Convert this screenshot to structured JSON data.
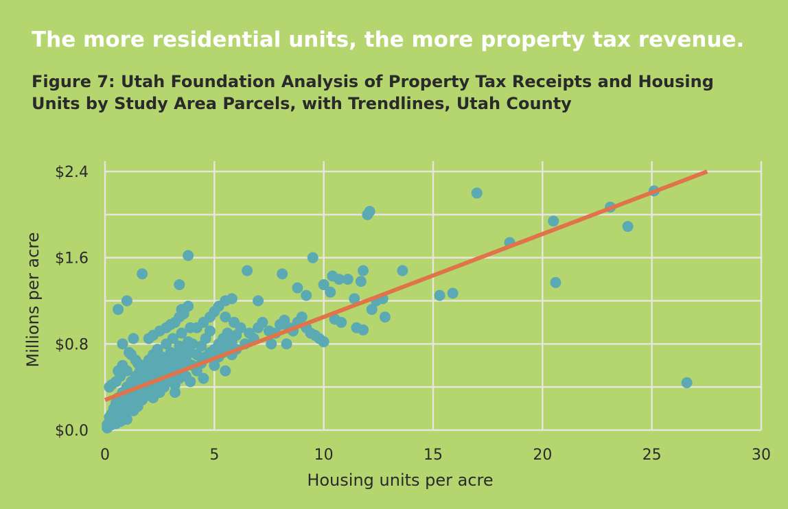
{
  "headline": "The more residential units, the more property tax revenue.",
  "chart_data": {
    "type": "scatter",
    "title": "Figure 7: Utah Foundation Analysis of Property Tax Receipts and Housing Units by Study Area Parcels, with Trendlines, Utah County",
    "xlabel": "Housing units per acre",
    "ylabel": "Millions per acre",
    "xlim": [
      0,
      30
    ],
    "ylim": [
      0,
      2.4
    ],
    "x_ticks": [
      "0",
      "5",
      "10",
      "15",
      "20",
      "25",
      "30"
    ],
    "y_ticks": [
      "$0.0",
      "$0.8",
      "$1.6",
      "$2.4"
    ],
    "grid": true,
    "colors": {
      "points": "#5aa9b3",
      "trendline": "#e0734a",
      "grid": "#e6e6dc",
      "background": "#b5d56f"
    },
    "trendline": {
      "slope": 0.077,
      "intercept": 0.28
    },
    "points": [
      [
        0.1,
        0.02
      ],
      [
        0.1,
        0.05
      ],
      [
        0.2,
        0.08
      ],
      [
        0.2,
        0.12
      ],
      [
        0.3,
        0.15
      ],
      [
        0.3,
        0.05
      ],
      [
        0.4,
        0.1
      ],
      [
        0.4,
        0.2
      ],
      [
        0.5,
        0.06
      ],
      [
        0.5,
        0.25
      ],
      [
        0.6,
        0.12
      ],
      [
        0.6,
        0.3
      ],
      [
        0.7,
        0.18
      ],
      [
        0.7,
        0.08
      ],
      [
        0.8,
        0.22
      ],
      [
        0.8,
        0.35
      ],
      [
        0.9,
        0.15
      ],
      [
        0.9,
        0.28
      ],
      [
        1.0,
        0.1
      ],
      [
        1.0,
        0.4
      ],
      [
        1.1,
        0.2
      ],
      [
        1.1,
        0.32
      ],
      [
        1.2,
        0.25
      ],
      [
        1.2,
        0.45
      ],
      [
        1.3,
        0.18
      ],
      [
        1.3,
        0.38
      ],
      [
        1.4,
        0.3
      ],
      [
        1.4,
        0.5
      ],
      [
        1.5,
        0.22
      ],
      [
        1.5,
        0.42
      ],
      [
        1.6,
        0.35
      ],
      [
        1.6,
        0.55
      ],
      [
        1.7,
        0.28
      ],
      [
        1.7,
        0.48
      ],
      [
        1.8,
        0.4
      ],
      [
        1.8,
        0.6
      ],
      [
        1.9,
        0.32
      ],
      [
        1.9,
        0.52
      ],
      [
        2.0,
        0.45
      ],
      [
        2.0,
        0.65
      ],
      [
        2.1,
        0.38
      ],
      [
        2.1,
        0.58
      ],
      [
        2.2,
        0.3
      ],
      [
        2.2,
        0.7
      ],
      [
        2.3,
        0.5
      ],
      [
        2.3,
        0.62
      ],
      [
        2.4,
        0.42
      ],
      [
        2.4,
        0.75
      ],
      [
        2.5,
        0.55
      ],
      [
        2.5,
        0.35
      ],
      [
        2.6,
        0.48
      ],
      [
        2.6,
        0.68
      ],
      [
        2.7,
        0.6
      ],
      [
        2.7,
        0.4
      ],
      [
        2.8,
        0.52
      ],
      [
        2.8,
        0.8
      ],
      [
        2.9,
        0.65
      ],
      [
        2.9,
        0.45
      ],
      [
        3.0,
        0.58
      ],
      [
        3.0,
        0.72
      ],
      [
        3.1,
        0.5
      ],
      [
        3.1,
        0.85
      ],
      [
        3.2,
        0.62
      ],
      [
        3.2,
        0.42
      ],
      [
        3.3,
        0.7
      ],
      [
        3.3,
        0.55
      ],
      [
        3.4,
        0.78
      ],
      [
        3.4,
        0.48
      ],
      [
        3.5,
        0.65
      ],
      [
        3.5,
        0.9
      ],
      [
        3.6,
        0.58
      ],
      [
        3.6,
        0.75
      ],
      [
        3.7,
        0.68
      ],
      [
        3.7,
        0.5
      ],
      [
        3.8,
        0.82
      ],
      [
        3.8,
        0.62
      ],
      [
        3.9,
        0.72
      ],
      [
        3.9,
        0.95
      ],
      [
        4.0,
        0.6
      ],
      [
        4.0,
        0.8
      ],
      [
        4.2,
        0.7
      ],
      [
        4.2,
        0.55
      ],
      [
        4.4,
        0.78
      ],
      [
        4.4,
        0.62
      ],
      [
        4.6,
        0.85
      ],
      [
        4.6,
        0.68
      ],
      [
        4.8,
        0.72
      ],
      [
        4.8,
        0.92
      ],
      [
        5.0,
        0.75
      ],
      [
        5.0,
        0.6
      ],
      [
        5.2,
        0.8
      ],
      [
        5.2,
        0.68
      ],
      [
        5.4,
        0.85
      ],
      [
        5.4,
        0.72
      ],
      [
        5.6,
        0.9
      ],
      [
        5.6,
        0.78
      ],
      [
        5.8,
        0.82
      ],
      [
        5.8,
        0.7
      ],
      [
        6.0,
        0.88
      ],
      [
        6.0,
        0.75
      ],
      [
        0.5,
        0.45
      ],
      [
        0.6,
        0.55
      ],
      [
        0.8,
        0.6
      ],
      [
        1.0,
        0.55
      ],
      [
        1.2,
        0.7
      ],
      [
        1.5,
        0.62
      ],
      [
        0.3,
        0.42
      ],
      [
        0.7,
        0.5
      ],
      [
        1.1,
        0.72
      ],
      [
        1.4,
        0.65
      ],
      [
        2.0,
        0.85
      ],
      [
        2.2,
        0.88
      ],
      [
        2.5,
        0.92
      ],
      [
        2.8,
        0.95
      ],
      [
        3.0,
        0.98
      ],
      [
        3.2,
        1.0
      ],
      [
        3.4,
        1.05
      ],
      [
        3.6,
        1.08
      ],
      [
        3.5,
        1.12
      ],
      [
        3.8,
        1.15
      ],
      [
        4.2,
        0.95
      ],
      [
        4.5,
        1.0
      ],
      [
        4.8,
        1.05
      ],
      [
        5.0,
        1.1
      ],
      [
        5.2,
        1.15
      ],
      [
        5.5,
        1.2
      ],
      [
        5.8,
        1.22
      ],
      [
        5.5,
        1.05
      ],
      [
        5.9,
        1.0
      ],
      [
        6.2,
        0.95
      ],
      [
        0.6,
        1.12
      ],
      [
        1.0,
        1.2
      ],
      [
        1.7,
        1.45
      ],
      [
        3.4,
        1.35
      ],
      [
        3.8,
        1.62
      ],
      [
        0.2,
        0.4
      ],
      [
        0.8,
        0.8
      ],
      [
        1.3,
        0.85
      ],
      [
        6.5,
        1.48
      ],
      [
        7.0,
        1.2
      ],
      [
        6.4,
        0.8
      ],
      [
        6.6,
        0.9
      ],
      [
        6.8,
        0.85
      ],
      [
        7.0,
        0.95
      ],
      [
        7.2,
        1.0
      ],
      [
        7.5,
        0.92
      ],
      [
        7.6,
        0.8
      ],
      [
        7.8,
        0.9
      ],
      [
        8.0,
        0.98
      ],
      [
        8.2,
        1.02
      ],
      [
        8.4,
        0.95
      ],
      [
        8.6,
        0.92
      ],
      [
        8.8,
        1.0
      ],
      [
        9.0,
        1.05
      ],
      [
        9.2,
        0.95
      ],
      [
        9.4,
        0.9
      ],
      [
        9.6,
        0.88
      ],
      [
        9.8,
        0.85
      ],
      [
        10.0,
        0.82
      ],
      [
        8.3,
        0.8
      ],
      [
        8.1,
        1.45
      ],
      [
        8.8,
        1.32
      ],
      [
        9.2,
        1.25
      ],
      [
        9.5,
        1.6
      ],
      [
        10.0,
        1.35
      ],
      [
        10.3,
        1.28
      ],
      [
        10.4,
        1.43
      ],
      [
        10.7,
        1.4
      ],
      [
        11.1,
        1.4
      ],
      [
        11.4,
        1.22
      ],
      [
        11.5,
        0.95
      ],
      [
        11.7,
        1.38
      ],
      [
        11.8,
        0.93
      ],
      [
        11.8,
        1.48
      ],
      [
        12.2,
        1.12
      ],
      [
        12.4,
        1.2
      ],
      [
        12.7,
        1.22
      ],
      [
        12.8,
        1.05
      ],
      [
        13.6,
        1.48
      ],
      [
        10.5,
        1.03
      ],
      [
        10.8,
        1.0
      ],
      [
        12.0,
        2.0
      ],
      [
        12.1,
        2.03
      ],
      [
        15.3,
        1.25
      ],
      [
        15.9,
        1.27
      ],
      [
        17.0,
        2.2
      ],
      [
        18.5,
        1.74
      ],
      [
        20.5,
        1.94
      ],
      [
        20.6,
        1.37
      ],
      [
        23.1,
        2.07
      ],
      [
        23.9,
        1.89
      ],
      [
        25.1,
        2.22
      ],
      [
        26.6,
        0.44
      ],
      [
        0.9,
        0.15
      ],
      [
        1.5,
        0.3
      ],
      [
        2.4,
        0.4
      ],
      [
        3.2,
        0.35
      ],
      [
        3.9,
        0.45
      ],
      [
        4.5,
        0.48
      ],
      [
        5.5,
        0.55
      ]
    ]
  }
}
